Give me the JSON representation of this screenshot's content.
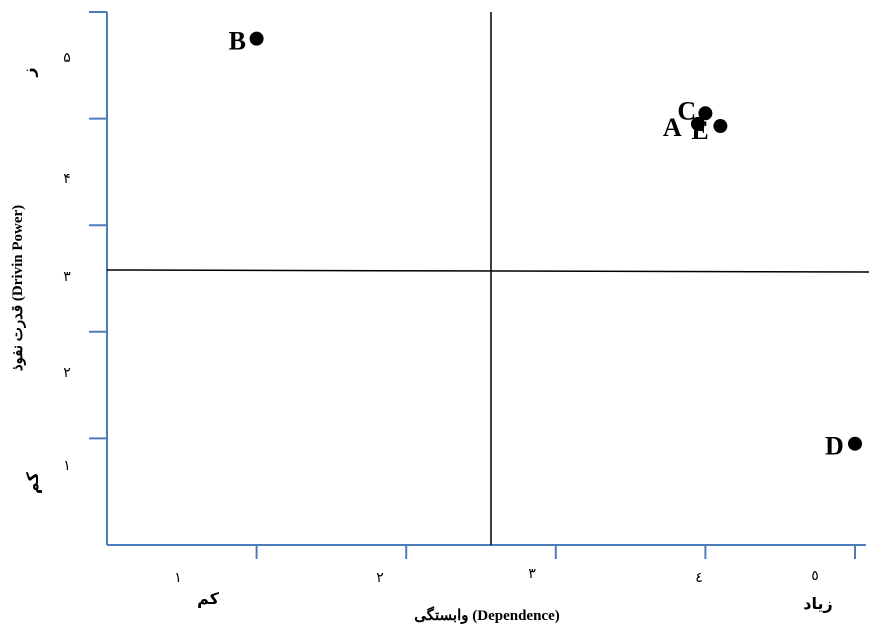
{
  "chart_data": {
    "type": "scatter",
    "title": "",
    "xlabel": "وابستگی (Dependence)",
    "ylabel": "قدرت نفوذ (Drivin Power)",
    "x_tick_labels": [
      "١",
      "٢",
      "٣",
      "٤",
      "٥"
    ],
    "y_tick_labels": [
      "١",
      "٢",
      "٣",
      "۴",
      "۵"
    ],
    "x_low_label": "کم",
    "x_high_label": "زیاد",
    "y_low_label": "کم",
    "y_high_label": "ز",
    "xlim": [
      0.5,
      5.5
    ],
    "ylim": [
      0.5,
      5.5
    ],
    "divider_x": 3.0,
    "divider_y": 3.0,
    "grid": false,
    "points": [
      {
        "label": "B",
        "x": 1.5,
        "y": 5.25
      },
      {
        "label": "C",
        "x": 4.5,
        "y": 4.55
      },
      {
        "label": "A",
        "x": 4.45,
        "y": 4.45
      },
      {
        "label": "E",
        "x": 4.6,
        "y": 4.43
      },
      {
        "label": "D",
        "x": 5.5,
        "y": 1.45
      }
    ],
    "axis_color": "#4a7ebb",
    "marker_color": "#000000"
  }
}
